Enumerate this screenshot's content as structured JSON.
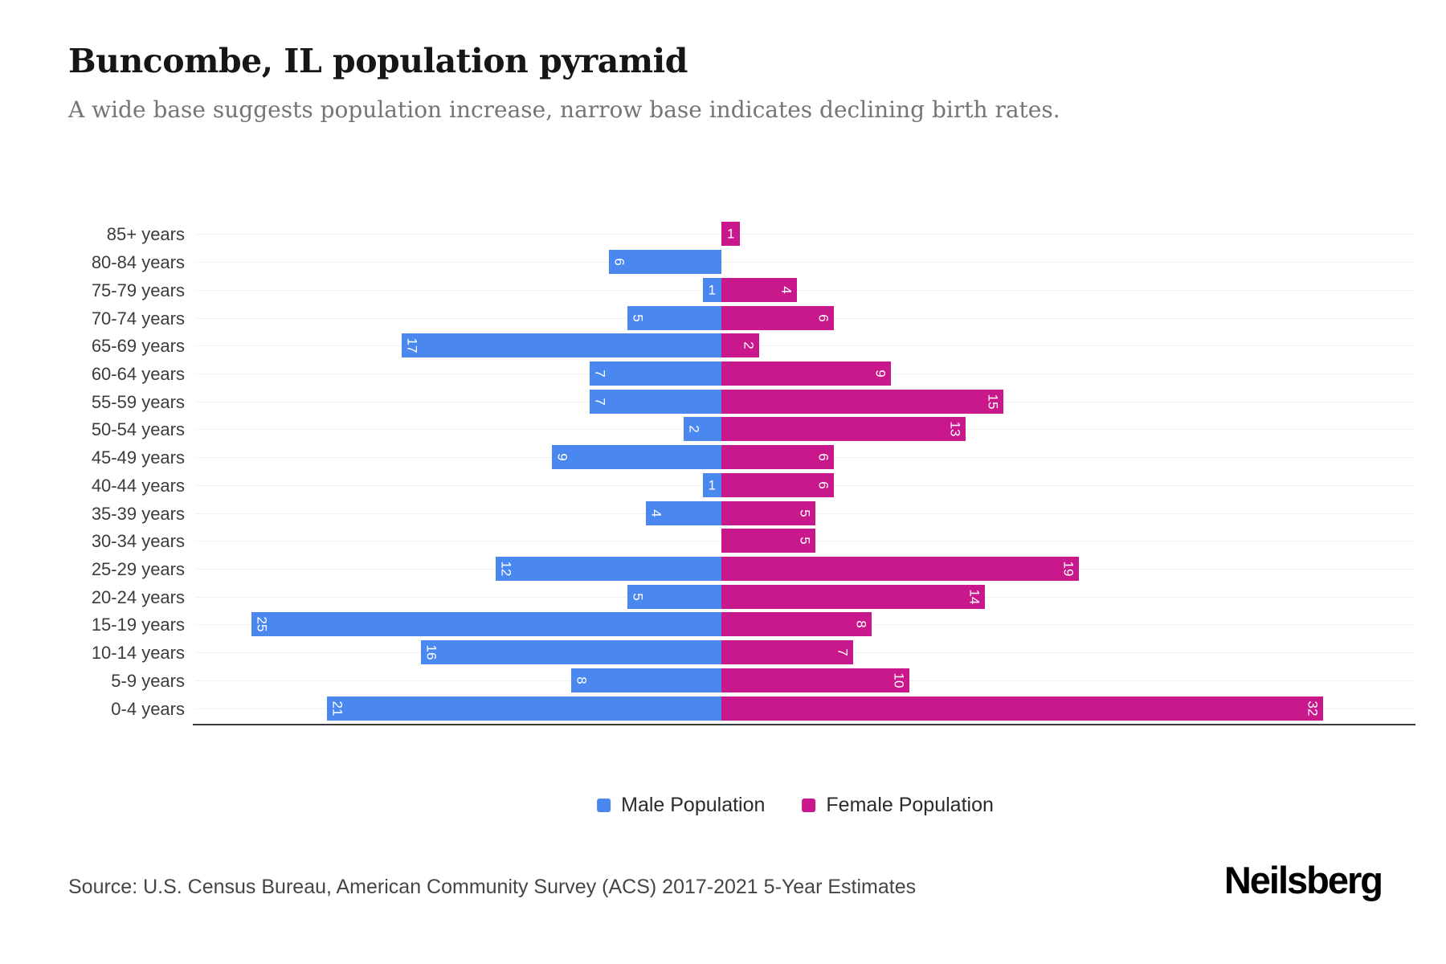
{
  "title": "Buncombe, IL population pyramid",
  "subtitle": "A wide base suggests population increase, narrow base indicates declining birth rates.",
  "source": "Source: U.S. Census Bureau, American Community Survey (ACS) 2017-2021 5-Year Estimates",
  "brand": "Neilsberg",
  "legend": {
    "male_label": "Male Population",
    "female_label": "Female Population"
  },
  "colors": {
    "male": "#4a88ef",
    "female": "#c9188c",
    "axis": "#3a3a3a",
    "grid": "#f1f1f1"
  },
  "chart_data": {
    "type": "bar",
    "variant": "population-pyramid",
    "title": "Buncombe, IL population pyramid",
    "categories": [
      "85+ years",
      "80-84 years",
      "75-79 years",
      "70-74 years",
      "65-69 years",
      "60-64 years",
      "55-59 years",
      "50-54 years",
      "45-49 years",
      "40-44 years",
      "35-39 years",
      "30-34 years",
      "25-29 years",
      "20-24 years",
      "15-19 years",
      "10-14 years",
      "5-9 years",
      "0-4 years"
    ],
    "series": [
      {
        "name": "Male Population",
        "side": "left",
        "color": "#4a88ef",
        "values": [
          0,
          6,
          1,
          5,
          17,
          7,
          7,
          2,
          9,
          1,
          4,
          0,
          12,
          5,
          25,
          16,
          8,
          21
        ]
      },
      {
        "name": "Female Population",
        "side": "right",
        "color": "#c9188c",
        "values": [
          1,
          0,
          4,
          6,
          2,
          9,
          15,
          13,
          6,
          6,
          5,
          5,
          19,
          14,
          8,
          7,
          10,
          32
        ]
      }
    ],
    "value_labels": "inside bar at outer end, white, rotated 90deg (single-digit value 1 shown upright)",
    "xlim_units": 32,
    "grid": "faint horizontal line per category row",
    "legend_position": "bottom-center"
  }
}
